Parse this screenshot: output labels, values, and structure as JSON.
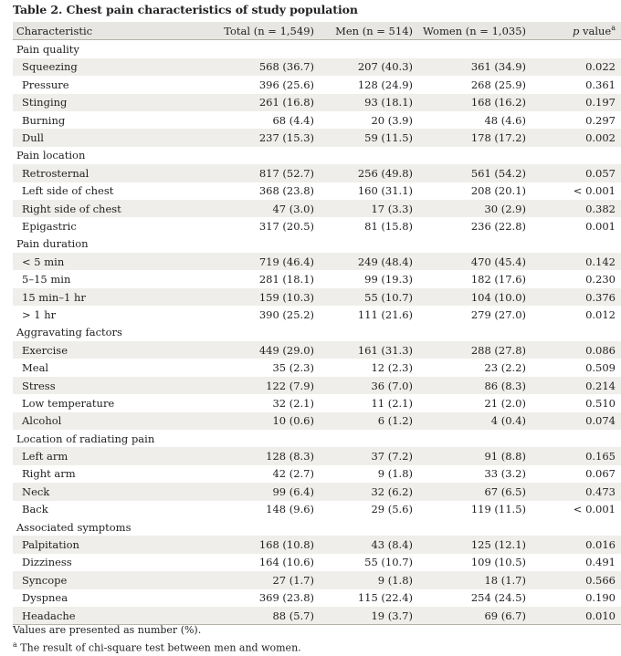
{
  "title": "Table 2. Chest pain characteristics of study population",
  "header": {
    "characteristic": "Characteristic",
    "total": "Total (n = 1,549)",
    "men": "Men (n = 514)",
    "women": "Women (n = 1,035)",
    "pvalue_italic": "p",
    "pvalue_rest": " value",
    "pvalue_sup": "a"
  },
  "rows": [
    {
      "type": "section",
      "label": "Pain quality"
    },
    {
      "type": "item",
      "label": "Squeezing",
      "total": "568 (36.7)",
      "men": "207 (40.3)",
      "women": "361 (34.9)",
      "p": "0.022"
    },
    {
      "type": "item",
      "label": "Pressure",
      "total": "396 (25.6)",
      "men": "128 (24.9)",
      "women": "268 (25.9)",
      "p": "0.361"
    },
    {
      "type": "item",
      "label": "Stinging",
      "total": "261 (16.8)",
      "men": "93 (18.1)",
      "women": "168 (16.2)",
      "p": "0.197"
    },
    {
      "type": "item",
      "label": "Burning",
      "total": "68 (4.4)",
      "men": "20 (3.9)",
      "women": "48 (4.6)",
      "p": "0.297"
    },
    {
      "type": "item",
      "label": "Dull",
      "total": "237 (15.3)",
      "men": "59 (11.5)",
      "women": "178 (17.2)",
      "p": "0.002"
    },
    {
      "type": "section",
      "label": "Pain location"
    },
    {
      "type": "item",
      "label": "Retrosternal",
      "total": "817 (52.7)",
      "men": "256 (49.8)",
      "women": "561 (54.2)",
      "p": "0.057"
    },
    {
      "type": "item",
      "label": "Left side of chest",
      "total": "368 (23.8)",
      "men": "160 (31.1)",
      "women": "208 (20.1)",
      "p": "< 0.001"
    },
    {
      "type": "item",
      "label": "Right side of chest",
      "total": "47 (3.0)",
      "men": "17 (3.3)",
      "women": "30 (2.9)",
      "p": "0.382"
    },
    {
      "type": "item",
      "label": "Epigastric",
      "total": "317 (20.5)",
      "men": "81 (15.8)",
      "women": "236 (22.8)",
      "p": "0.001"
    },
    {
      "type": "section",
      "label": "Pain duration"
    },
    {
      "type": "item",
      "label": "< 5 min",
      "total": "719 (46.4)",
      "men": "249 (48.4)",
      "women": "470 (45.4)",
      "p": "0.142"
    },
    {
      "type": "item",
      "label": "5–15 min",
      "total": "281 (18.1)",
      "men": "99 (19.3)",
      "women": "182 (17.6)",
      "p": "0.230"
    },
    {
      "type": "item",
      "label": "15 min–1 hr",
      "total": "159 (10.3)",
      "men": "55 (10.7)",
      "women": "104 (10.0)",
      "p": "0.376"
    },
    {
      "type": "item",
      "label": "> 1 hr",
      "total": "390 (25.2)",
      "men": "111 (21.6)",
      "women": "279 (27.0)",
      "p": "0.012"
    },
    {
      "type": "section",
      "label": "Aggravating factors"
    },
    {
      "type": "item",
      "label": "Exercise",
      "total": "449 (29.0)",
      "men": "161 (31.3)",
      "women": "288 (27.8)",
      "p": "0.086"
    },
    {
      "type": "item",
      "label": "Meal",
      "total": "35 (2.3)",
      "men": "12 (2.3)",
      "women": "23 (2.2)",
      "p": "0.509"
    },
    {
      "type": "item",
      "label": "Stress",
      "total": "122 (7.9)",
      "men": "36 (7.0)",
      "women": "86 (8.3)",
      "p": "0.214"
    },
    {
      "type": "item",
      "label": "Low temperature",
      "total": "32 (2.1)",
      "men": "11 (2.1)",
      "women": "21 (2.0)",
      "p": "0.510"
    },
    {
      "type": "item",
      "label": "Alcohol",
      "total": "10 (0.6)",
      "men": "6 (1.2)",
      "women": "4 (0.4)",
      "p": "0.074"
    },
    {
      "type": "section",
      "label": "Location of radiating pain"
    },
    {
      "type": "item",
      "label": "Left arm",
      "total": "128 (8.3)",
      "men": "37 (7.2)",
      "women": "91 (8.8)",
      "p": "0.165"
    },
    {
      "type": "item",
      "label": "Right arm",
      "total": "42 (2.7)",
      "men": "9 (1.8)",
      "women": "33 (3.2)",
      "p": "0.067"
    },
    {
      "type": "item",
      "label": "Neck",
      "total": "99 (6.4)",
      "men": "32 (6.2)",
      "women": "67 (6.5)",
      "p": "0.473"
    },
    {
      "type": "item",
      "label": "Back",
      "total": "148 (9.6)",
      "men": "29 (5.6)",
      "women": "119 (11.5)",
      "p": "< 0.001"
    },
    {
      "type": "section",
      "label": "Associated symptoms"
    },
    {
      "type": "item",
      "label": "Palpitation",
      "total": "168 (10.8)",
      "men": "43 (8.4)",
      "women": "125 (12.1)",
      "p": "0.016"
    },
    {
      "type": "item",
      "label": "Dizziness",
      "total": "164 (10.6)",
      "men": "55 (10.7)",
      "women": "109 (10.5)",
      "p": "0.491"
    },
    {
      "type": "item",
      "label": "Syncope",
      "total": "27 (1.7)",
      "men": "9 (1.8)",
      "women": "18 (1.7)",
      "p": "0.566"
    },
    {
      "type": "item",
      "label": "Dyspnea",
      "total": "369 (23.8)",
      "men": "115 (22.4)",
      "women": "254 (24.5)",
      "p": "0.190"
    },
    {
      "type": "item",
      "label": "Headache",
      "total": "88 (5.7)",
      "men": "19 (3.7)",
      "women": "69 (6.7)",
      "p": "0.010"
    }
  ],
  "notes": {
    "line1": "Values are presented as number (%).",
    "line2_sup": "a",
    "line2": " The result of chi-square test between men and women."
  },
  "colors": {
    "header_bg": "#e7e6e2",
    "row_shade": "#efeeea",
    "rule": "#b7b3aa"
  }
}
